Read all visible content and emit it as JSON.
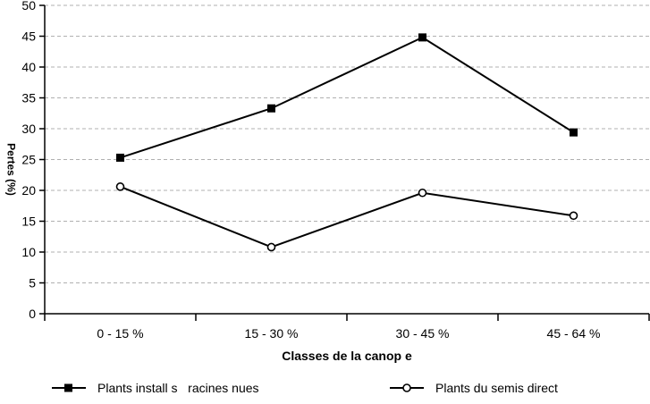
{
  "chart_data": {
    "type": "line",
    "title": "",
    "xlabel": "Classes de la canop e",
    "ylabel": "Pertes (%)",
    "categories": [
      "0 - 15 %",
      "15 - 30 %",
      "30 - 45 %",
      "45 - 64 %"
    ],
    "series": [
      {
        "name": "Plants install s   racines nues",
        "marker": "filled-square",
        "values": [
          25.3,
          33.3,
          44.8,
          29.4
        ]
      },
      {
        "name": "Plants du semis direct",
        "marker": "open-circle",
        "values": [
          20.6,
          10.8,
          19.6,
          15.9
        ]
      }
    ],
    "ylim": [
      0,
      50
    ],
    "ytick_step": 5,
    "grid": "horizontal-dashed",
    "legend_position": "bottom"
  },
  "colors": {
    "series_line": "#000000",
    "gridline": "#b0b0b0",
    "axis": "#000000",
    "text": "#000000",
    "background": "#ffffff"
  }
}
